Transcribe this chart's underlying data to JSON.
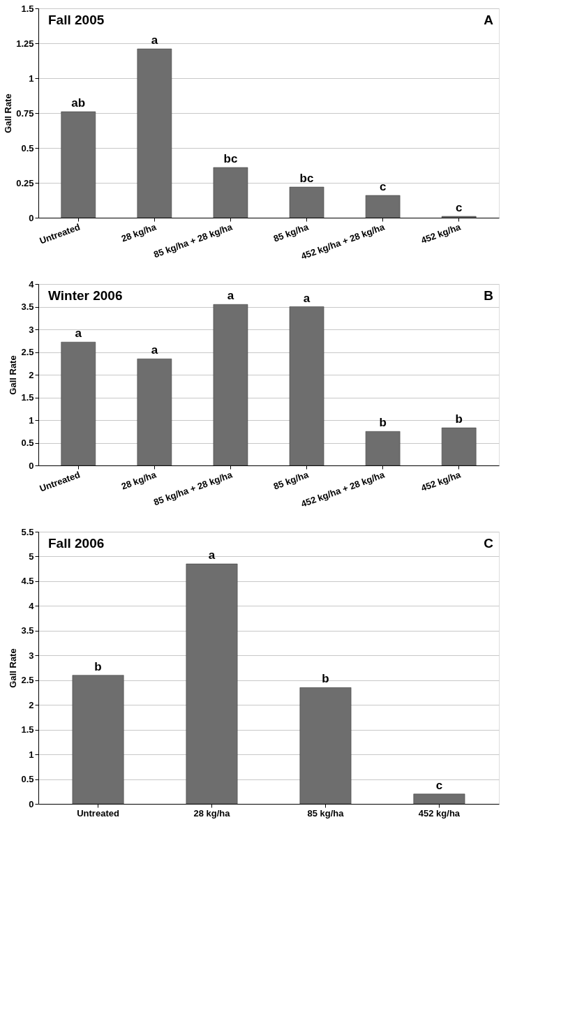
{
  "chart_data": [
    {
      "type": "bar",
      "title": "Fall 2005",
      "ylabel": "Gall Rate",
      "annotations": [
        "A"
      ],
      "categories": [
        "Untreated",
        "28 kg/ha",
        "85 kg/ha + 28 kg/ha",
        "85 kg/ha",
        "452 kg/ha + 28 kg/ha",
        "452 kg/ha"
      ],
      "values": [
        0.76,
        1.21,
        0.36,
        0.22,
        0.16,
        0.01
      ],
      "color": "#6e6e6e",
      "value_labels": [
        "ab",
        "a",
        "bc",
        "bc",
        "c",
        "c"
      ],
      "ylim": [
        0,
        1.5
      ],
      "yticks": [
        0,
        0.25,
        0.5,
        0.75,
        1,
        1.25,
        1.5
      ],
      "grid": "y"
    },
    {
      "type": "bar",
      "title": "Winter 2006",
      "ylabel": "Gall Rate",
      "annotations": [
        "B"
      ],
      "categories": [
        "Untreated",
        "28 kg/ha",
        "85 kg/ha + 28 kg/ha",
        "85 kg/ha",
        "452 kg/ha + 28 kg/ha",
        "452 kg/ha"
      ],
      "values": [
        2.72,
        2.35,
        3.55,
        3.5,
        0.75,
        0.83
      ],
      "color": "#6e6e6e",
      "value_labels": [
        "a",
        "a",
        "a",
        "a",
        "b",
        "b"
      ],
      "ylim": [
        0,
        4
      ],
      "yticks": [
        0,
        0.5,
        1,
        1.5,
        2,
        2.5,
        3,
        3.5,
        4
      ],
      "grid": "y"
    },
    {
      "type": "bar",
      "title": "Fall 2006",
      "ylabel": "Gall Rate",
      "annotations": [
        "C"
      ],
      "categories": [
        "Untreated",
        "28 kg/ha",
        "85 kg/ha",
        "452 kg/ha"
      ],
      "values": [
        2.6,
        4.85,
        2.35,
        0.2
      ],
      "color": "#6e6e6e",
      "value_labels": [
        "b",
        "a",
        "b",
        "c"
      ],
      "ylim": [
        0,
        5.5
      ],
      "yticks": [
        0,
        0.5,
        1,
        1.5,
        2,
        2.5,
        3,
        3.5,
        4,
        4.5,
        5,
        5.5
      ],
      "grid": "y"
    }
  ]
}
